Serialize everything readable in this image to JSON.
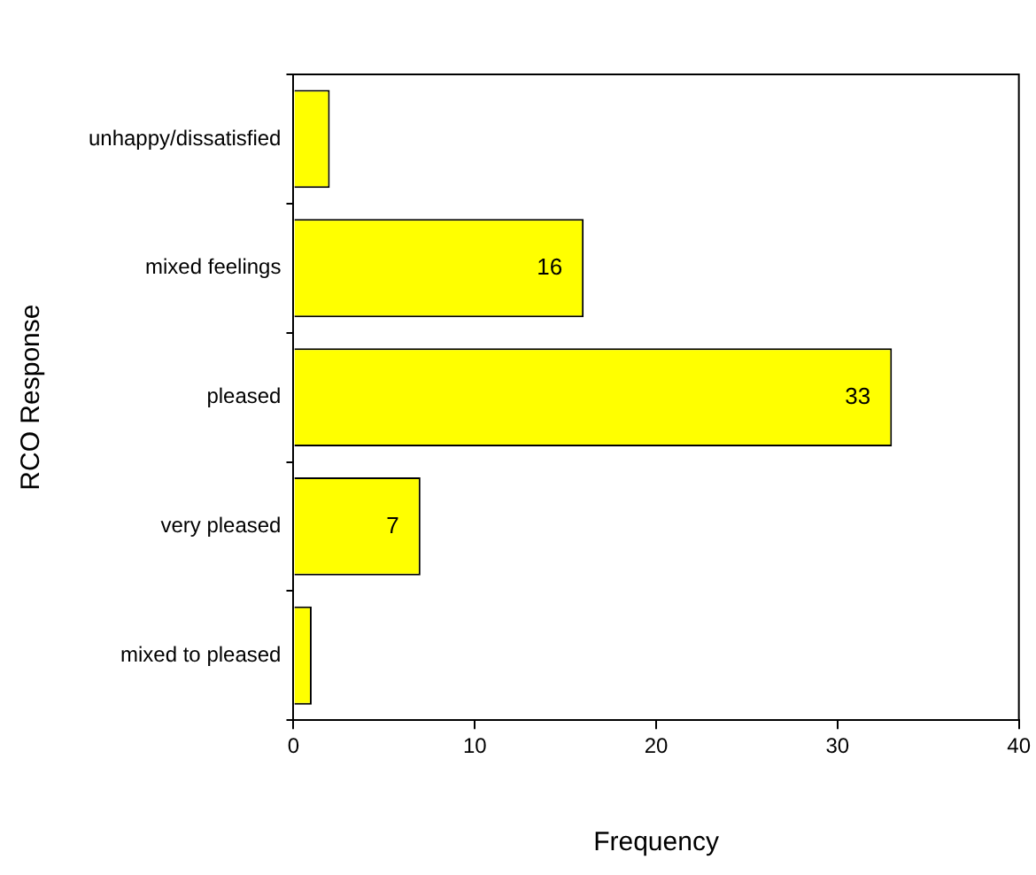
{
  "chart_data": {
    "type": "bar",
    "orientation": "horizontal",
    "categories": [
      "unhappy/dissatisfied",
      "mixed feelings",
      "pleased",
      "very pleased",
      "mixed to pleased"
    ],
    "values": [
      2,
      16,
      33,
      7,
      1
    ],
    "value_labels": [
      null,
      "16",
      "33",
      "7",
      null
    ],
    "color": "#ffff00",
    "xlim": [
      0,
      40
    ],
    "xticks": [
      0,
      10,
      20,
      30,
      40
    ],
    "xlabel": "Frequency",
    "ylabel": "RCO Response",
    "grid": false,
    "legend": false
  }
}
